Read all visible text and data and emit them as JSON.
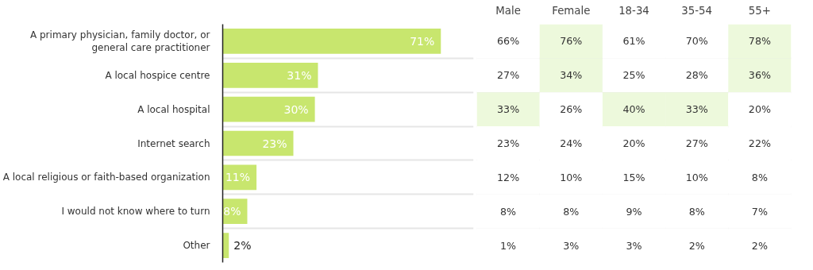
{
  "chart_data": [
    {
      "type": "bar",
      "orientation": "horizontal",
      "categories": [
        "A primary physician, family doctor, or general care practitioner",
        "A local hospice centre",
        "A local hospital",
        "Internet search",
        "A local religious or faith-based organization",
        "I would not know where to turn",
        "Other"
      ],
      "values": [
        71,
        31,
        30,
        23,
        11,
        8,
        2
      ],
      "color": "#c8e66e",
      "value_labels": [
        "71%",
        "31%",
        "30%",
        "23%",
        "11%",
        "8%",
        "2%"
      ],
      "grid": "y"
    },
    {
      "type": "heatmap",
      "categories": [
        "Male",
        "Female",
        "18-34",
        "35-54",
        "55+"
      ],
      "y_categories": [
        null,
        null,
        null,
        null,
        null,
        null,
        null
      ],
      "cell_labels": [
        [
          "66%",
          "76%",
          "61%",
          "70%",
          "78%"
        ],
        [
          "27%",
          "34%",
          "25%",
          "28%",
          "36%"
        ],
        [
          "33%",
          "26%",
          "40%",
          "33%",
          "20%"
        ],
        [
          "23%",
          "24%",
          "20%",
          "27%",
          "22%"
        ],
        [
          "12%",
          "10%",
          "15%",
          "10%",
          "8%"
        ],
        [
          "8%",
          "8%",
          "9%",
          "8%",
          "7%"
        ],
        [
          "1%",
          "3%",
          "3%",
          "2%",
          "2%"
        ]
      ],
      "cells": [
        [
          66,
          76,
          61,
          70,
          78
        ],
        [
          27,
          34,
          25,
          28,
          36
        ],
        [
          33,
          26,
          40,
          33,
          20
        ],
        [
          23,
          24,
          20,
          27,
          22
        ],
        [
          12,
          10,
          15,
          10,
          8
        ],
        [
          8,
          8,
          9,
          8,
          7
        ],
        [
          1,
          3,
          3,
          2,
          2
        ]
      ],
      "colors": [
        [
          "#ffffff",
          "#edf9dc",
          "#ffffff",
          "#ffffff",
          "#edf9dc"
        ],
        [
          "#ffffff",
          "#edf9dc",
          "#ffffff",
          "#ffffff",
          "#edf9dc"
        ],
        [
          "#edf9dc",
          "#ffffff",
          "#edf9dc",
          "#edf9dc",
          "#ffffff"
        ],
        [
          "#ffffff",
          "#ffffff",
          "#ffffff",
          "#ffffff",
          "#ffffff"
        ],
        [
          "#ffffff",
          "#ffffff",
          "#ffffff",
          "#ffffff",
          "#ffffff"
        ],
        [
          "#ffffff",
          "#ffffff",
          "#ffffff",
          "#ffffff",
          "#ffffff"
        ],
        [
          "#ffffff",
          "#ffffff",
          "#ffffff",
          "#ffffff",
          "#ffffff"
        ]
      ],
      "grid": "y"
    }
  ]
}
